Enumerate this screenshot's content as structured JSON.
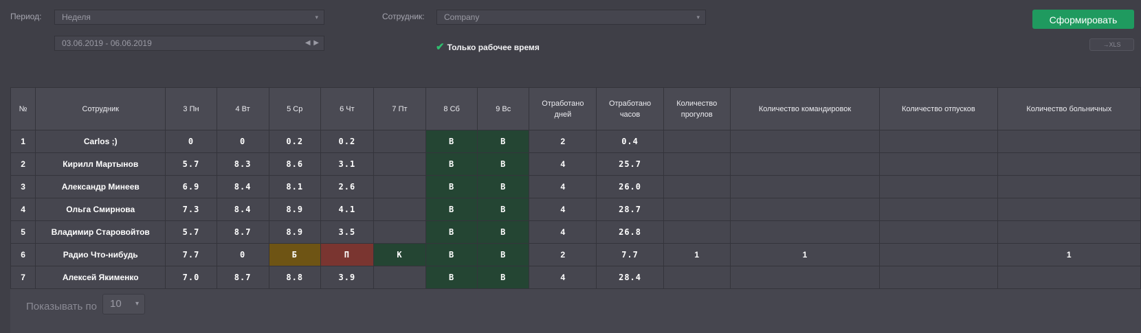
{
  "filters": {
    "period_label": "Период:",
    "period_value": "Неделя",
    "date_range": "03.06.2019 - 06.06.2019",
    "date_nav": "◀ ▶",
    "employee_label": "Сотрудник:",
    "employee_value": "Company",
    "only_work_time": "Только рабочее время",
    "check_mark": "✔",
    "chevron": "▾"
  },
  "actions": {
    "generate": "Сформировать",
    "xls": "→XLS"
  },
  "table": {
    "headers": [
      "№",
      "Сотрудник",
      "3 Пн",
      "4 Вт",
      "5 Ср",
      "6 Чт",
      "7 Пт",
      "8 Сб",
      "9 Вс",
      "Отработано дней",
      "Отработано часов",
      "Количество прогулов",
      "Количество командировок",
      "Количество отпусков",
      "Количество больничных"
    ],
    "rows": [
      {
        "num": "1",
        "name": "Carlos ;)",
        "d3": "0",
        "d4": "0",
        "d5": "0.2",
        "d6": "0.2",
        "d7": "",
        "d8": "В",
        "d9": "В",
        "days": "2",
        "hours": "0.4",
        "absences": "",
        "trips": "",
        "vacations": "",
        "sick": ""
      },
      {
        "num": "2",
        "name": "Кирилл Мартынов",
        "d3": "5.7",
        "d4": "8.3",
        "d5": "8.6",
        "d6": "3.1",
        "d7": "",
        "d8": "В",
        "d9": "В",
        "days": "4",
        "hours": "25.7",
        "absences": "",
        "trips": "",
        "vacations": "",
        "sick": ""
      },
      {
        "num": "3",
        "name": "Александр Минеев",
        "d3": "6.9",
        "d4": "8.4",
        "d5": "8.1",
        "d6": "2.6",
        "d7": "",
        "d8": "В",
        "d9": "В",
        "days": "4",
        "hours": "26.0",
        "absences": "",
        "trips": "",
        "vacations": "",
        "sick": ""
      },
      {
        "num": "4",
        "name": "Ольга Смирнова",
        "d3": "7.3",
        "d4": "8.4",
        "d5": "8.9",
        "d6": "4.1",
        "d7": "",
        "d8": "В",
        "d9": "В",
        "days": "4",
        "hours": "28.7",
        "absences": "",
        "trips": "",
        "vacations": "",
        "sick": ""
      },
      {
        "num": "5",
        "name": "Владимир Старовойтов",
        "d3": "5.7",
        "d4": "8.7",
        "d5": "8.9",
        "d6": "3.5",
        "d7": "",
        "d8": "В",
        "d9": "В",
        "days": "4",
        "hours": "26.8",
        "absences": "",
        "trips": "",
        "vacations": "",
        "sick": ""
      },
      {
        "num": "6",
        "name": "Радио Что-нибудь",
        "d3": "7.7",
        "d4": "0",
        "d5": "Б",
        "d6": "П",
        "d7": "К",
        "d8": "В",
        "d9": "В",
        "days": "2",
        "hours": "7.7",
        "absences": "1",
        "trips": "1",
        "vacations": "",
        "sick": "1"
      },
      {
        "num": "7",
        "name": "Алексей Якименко",
        "d3": "7.0",
        "d4": "8.7",
        "d5": "8.8",
        "d6": "3.9",
        "d7": "",
        "d8": "В",
        "d9": "В",
        "days": "4",
        "hours": "28.4",
        "absences": "",
        "trips": "",
        "vacations": "",
        "sick": ""
      }
    ]
  },
  "pager": {
    "label": "Показывать по",
    "value": "10"
  },
  "colors": {
    "weekend": "#244533",
    "sick_leave": "#6e5414",
    "absence": "#7a3530",
    "trip": "#244533",
    "accent": "#1f9a5f"
  }
}
